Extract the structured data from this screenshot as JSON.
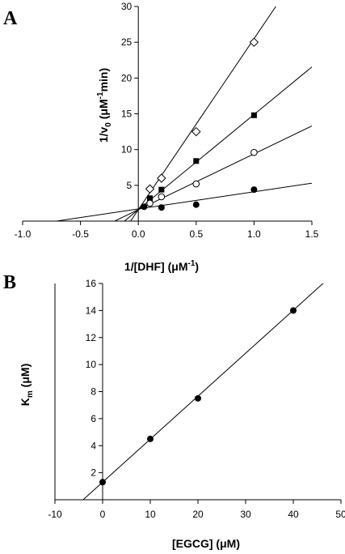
{
  "figure": {
    "panels": [
      {
        "panel_label": "A",
        "chart_data": {
          "type": "scatter",
          "title": "",
          "xlabel_parts": [
            "1/[DHF] (",
            "μ",
            "M",
            "-1",
            ")"
          ],
          "ylabel_parts": [
            "1/v",
            "0",
            " (",
            "μ",
            "M",
            "-1",
            "min)"
          ],
          "xlim": [
            -1.0,
            1.5
          ],
          "ylim": [
            0,
            30
          ],
          "x_ticks": [
            "-1.0",
            "-0.5",
            "0.0",
            "0.5",
            "1.0",
            "1.5"
          ],
          "y_ticks": [
            "5",
            "10",
            "15",
            "20",
            "25",
            "30"
          ],
          "series": [
            {
              "marker": "open-diamond",
              "x": [
                0.1,
                0.2,
                0.5,
                1.0
              ],
              "y": [
                4.5,
                6.0,
                12.5,
                25.0
              ],
              "fit_line": {
                "slope": 23.9,
                "intercept": 1.6
              }
            },
            {
              "marker": "filled-square",
              "x": [
                0.1,
                0.2,
                0.5,
                1.0
              ],
              "y": [
                3.2,
                4.4,
                8.4,
                14.8
              ],
              "fit_line": {
                "slope": 13.3,
                "intercept": 1.6
              }
            },
            {
              "marker": "open-circle",
              "x": [
                0.1,
                0.2,
                0.5,
                1.0
              ],
              "y": [
                2.5,
                3.4,
                5.2,
                9.6
              ],
              "fit_line": {
                "slope": 7.8,
                "intercept": 1.6
              }
            },
            {
              "marker": "filled-circle",
              "x": [
                0.05,
                0.2,
                0.5,
                1.0
              ],
              "y": [
                2.0,
                1.9,
                2.3,
                4.4
              ],
              "fit_line": {
                "slope": 2.4,
                "intercept": 1.7
              }
            }
          ]
        }
      },
      {
        "panel_label": "B",
        "chart_data": {
          "type": "scatter",
          "title": "",
          "xlabel_parts": [
            "[EGCG] (",
            "μ",
            "M)"
          ],
          "ylabel_parts": [
            "K",
            "m",
            " (",
            "μ",
            "M)"
          ],
          "xlim": [
            -10,
            50
          ],
          "ylim": [
            0,
            16
          ],
          "x_ticks": [
            "-10",
            "0",
            "10",
            "20",
            "30",
            "40",
            "50"
          ],
          "y_ticks": [
            "2",
            "4",
            "6",
            "8",
            "10",
            "12",
            "14",
            "16"
          ],
          "series": [
            {
              "marker": "filled-circle",
              "x": [
                0,
                10,
                20,
                40
              ],
              "y": [
                1.3,
                4.5,
                7.5,
                14.0
              ],
              "fit_line": {
                "slope": 0.318,
                "intercept": 1.3
              }
            }
          ]
        }
      }
    ]
  }
}
